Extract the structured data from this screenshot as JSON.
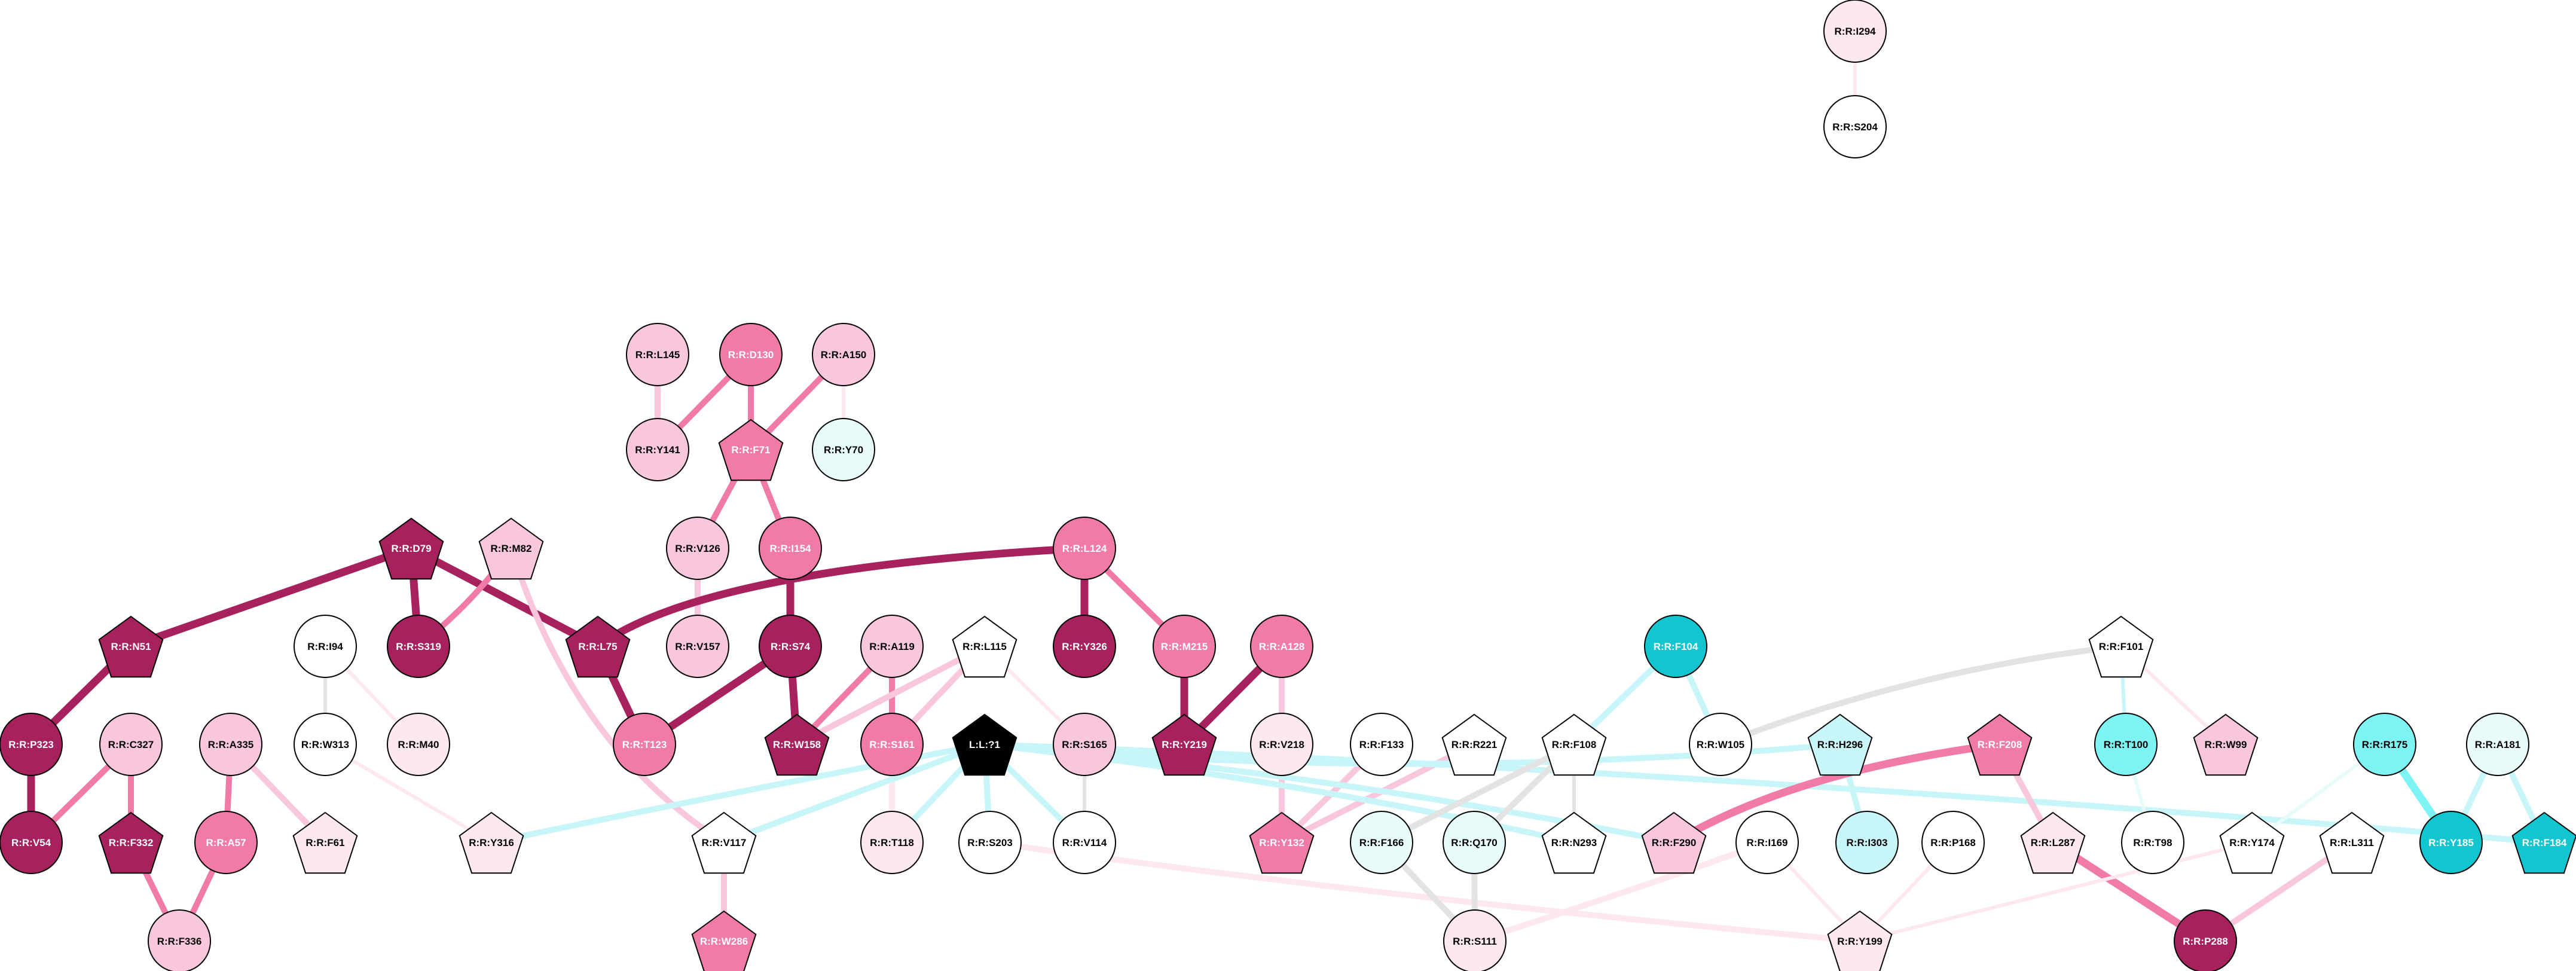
{
  "colors": {
    "background": "#ffffff",
    "node_stroke": "#000000",
    "ligand": "#000000",
    "deep_magenta": "#a6215e",
    "pink": "#f07aa8",
    "light_pink": "#f9c7dd",
    "pale_pink": "#fde8f0",
    "white": "#ffffff",
    "pale_cyan": "#e8fbfb",
    "light_cyan": "#c8f6f8",
    "cyan": "#7df3f3",
    "teal": "#12c6d0",
    "edge_gray": "#e3e3e3"
  },
  "nodes": [
    {
      "id": "R:R:I294",
      "shape": "circle",
      "fill": "pale_pink"
    },
    {
      "id": "R:R:S204",
      "shape": "circle",
      "fill": "white"
    },
    {
      "id": "R:R:L145",
      "shape": "circle",
      "fill": "light_pink"
    },
    {
      "id": "R:R:D130",
      "shape": "circle",
      "fill": "pink"
    },
    {
      "id": "R:R:A150",
      "shape": "circle",
      "fill": "light_pink"
    },
    {
      "id": "R:R:Y141",
      "shape": "circle",
      "fill": "light_pink"
    },
    {
      "id": "R:R:F71",
      "shape": "pentagon",
      "fill": "pink"
    },
    {
      "id": "R:R:Y70",
      "shape": "circle",
      "fill": "pale_cyan"
    },
    {
      "id": "R:R:D79",
      "shape": "pentagon",
      "fill": "deep_magenta"
    },
    {
      "id": "R:R:M82",
      "shape": "pentagon",
      "fill": "light_pink"
    },
    {
      "id": "R:R:V126",
      "shape": "circle",
      "fill": "light_pink"
    },
    {
      "id": "R:R:I154",
      "shape": "circle",
      "fill": "pink"
    },
    {
      "id": "R:R:L124",
      "shape": "circle",
      "fill": "pink"
    },
    {
      "id": "R:R:N51",
      "shape": "pentagon",
      "fill": "deep_magenta"
    },
    {
      "id": "R:R:I94",
      "shape": "circle",
      "fill": "white"
    },
    {
      "id": "R:R:S319",
      "shape": "circle",
      "fill": "deep_magenta"
    },
    {
      "id": "R:R:L75",
      "shape": "pentagon",
      "fill": "deep_magenta"
    },
    {
      "id": "R:R:V157",
      "shape": "circle",
      "fill": "light_pink"
    },
    {
      "id": "R:R:S74",
      "shape": "circle",
      "fill": "deep_magenta"
    },
    {
      "id": "R:R:A119",
      "shape": "circle",
      "fill": "light_pink"
    },
    {
      "id": "R:R:L115",
      "shape": "pentagon",
      "fill": "white"
    },
    {
      "id": "R:R:Y326",
      "shape": "circle",
      "fill": "deep_magenta"
    },
    {
      "id": "R:R:M215",
      "shape": "circle",
      "fill": "pink"
    },
    {
      "id": "R:R:A128",
      "shape": "circle",
      "fill": "pink"
    },
    {
      "id": "R:R:F104",
      "shape": "circle",
      "fill": "teal"
    },
    {
      "id": "R:R:F101",
      "shape": "pentagon",
      "fill": "white"
    },
    {
      "id": "R:R:P323",
      "shape": "circle",
      "fill": "deep_magenta"
    },
    {
      "id": "R:R:C327",
      "shape": "circle",
      "fill": "light_pink"
    },
    {
      "id": "R:R:A335",
      "shape": "circle",
      "fill": "light_pink"
    },
    {
      "id": "R:R:W313",
      "shape": "circle",
      "fill": "white"
    },
    {
      "id": "R:R:M40",
      "shape": "circle",
      "fill": "pale_pink"
    },
    {
      "id": "R:R:T123",
      "shape": "circle",
      "fill": "pink"
    },
    {
      "id": "R:R:W158",
      "shape": "pentagon",
      "fill": "deep_magenta"
    },
    {
      "id": "R:R:S161",
      "shape": "circle",
      "fill": "pink"
    },
    {
      "id": "L:L:?1",
      "shape": "pentagon",
      "fill": "ligand"
    },
    {
      "id": "R:R:S165",
      "shape": "circle",
      "fill": "light_pink"
    },
    {
      "id": "R:R:Y219",
      "shape": "pentagon",
      "fill": "deep_magenta"
    },
    {
      "id": "R:R:V218",
      "shape": "circle",
      "fill": "pale_pink"
    },
    {
      "id": "R:R:F133",
      "shape": "circle",
      "fill": "white"
    },
    {
      "id": "R:R:R221",
      "shape": "pentagon",
      "fill": "white"
    },
    {
      "id": "R:R:F108",
      "shape": "pentagon",
      "fill": "white"
    },
    {
      "id": "R:R:W105",
      "shape": "circle",
      "fill": "white"
    },
    {
      "id": "R:R:H296",
      "shape": "pentagon",
      "fill": "light_cyan"
    },
    {
      "id": "R:R:F208",
      "shape": "pentagon",
      "fill": "pink"
    },
    {
      "id": "R:R:T100",
      "shape": "circle",
      "fill": "cyan"
    },
    {
      "id": "R:R:W99",
      "shape": "pentagon",
      "fill": "light_pink"
    },
    {
      "id": "R:R:R175",
      "shape": "circle",
      "fill": "cyan"
    },
    {
      "id": "R:R:A181",
      "shape": "circle",
      "fill": "pale_cyan"
    },
    {
      "id": "R:R:V54",
      "shape": "circle",
      "fill": "deep_magenta"
    },
    {
      "id": "R:R:F332",
      "shape": "pentagon",
      "fill": "deep_magenta"
    },
    {
      "id": "R:R:A57",
      "shape": "circle",
      "fill": "pink"
    },
    {
      "id": "R:R:F61",
      "shape": "pentagon",
      "fill": "pale_pink"
    },
    {
      "id": "R:R:Y316",
      "shape": "pentagon",
      "fill": "pale_pink"
    },
    {
      "id": "R:R:V117",
      "shape": "pentagon",
      "fill": "white"
    },
    {
      "id": "R:R:T118",
      "shape": "circle",
      "fill": "pale_pink"
    },
    {
      "id": "R:R:S203",
      "shape": "circle",
      "fill": "white"
    },
    {
      "id": "R:R:V114",
      "shape": "circle",
      "fill": "white"
    },
    {
      "id": "R:R:Y132",
      "shape": "pentagon",
      "fill": "pink"
    },
    {
      "id": "R:R:F166",
      "shape": "circle",
      "fill": "pale_cyan"
    },
    {
      "id": "R:R:Q170",
      "shape": "circle",
      "fill": "pale_cyan"
    },
    {
      "id": "R:R:N293",
      "shape": "pentagon",
      "fill": "white"
    },
    {
      "id": "R:R:F290",
      "shape": "pentagon",
      "fill": "light_pink"
    },
    {
      "id": "R:R:I169",
      "shape": "circle",
      "fill": "white"
    },
    {
      "id": "R:R:I303",
      "shape": "circle",
      "fill": "light_cyan"
    },
    {
      "id": "R:R:P168",
      "shape": "circle",
      "fill": "white"
    },
    {
      "id": "R:R:L287",
      "shape": "pentagon",
      "fill": "pale_pink"
    },
    {
      "id": "R:R:T98",
      "shape": "circle",
      "fill": "white"
    },
    {
      "id": "R:R:Y174",
      "shape": "pentagon",
      "fill": "white"
    },
    {
      "id": "R:R:L311",
      "shape": "pentagon",
      "fill": "white"
    },
    {
      "id": "R:R:Y185",
      "shape": "circle",
      "fill": "teal"
    },
    {
      "id": "R:R:F184",
      "shape": "pentagon",
      "fill": "teal"
    },
    {
      "id": "R:R:F336",
      "shape": "circle",
      "fill": "light_pink"
    },
    {
      "id": "R:R:W286",
      "shape": "pentagon",
      "fill": "pink"
    },
    {
      "id": "R:R:S111",
      "shape": "circle",
      "fill": "pale_pink"
    },
    {
      "id": "R:R:Y199",
      "shape": "pentagon",
      "fill": "pale_pink"
    },
    {
      "id": "R:R:P288",
      "shape": "circle",
      "fill": "deep_magenta"
    }
  ],
  "edges": [
    {
      "source": "R:R:I294",
      "target": "R:R:S204",
      "color": "pale_pink",
      "weight": "thin"
    },
    {
      "source": "R:R:L145",
      "target": "R:R:Y141",
      "color": "light_pink",
      "weight": "medium"
    },
    {
      "source": "R:R:D130",
      "target": "R:R:Y141",
      "color": "pink",
      "weight": "medium"
    },
    {
      "source": "R:R:D130",
      "target": "R:R:F71",
      "color": "pink",
      "weight": "medium"
    },
    {
      "source": "R:R:A150",
      "target": "R:R:F71",
      "color": "pink",
      "weight": "medium"
    },
    {
      "source": "R:R:A150",
      "target": "R:R:Y70",
      "color": "pale_pink",
      "weight": "thin"
    },
    {
      "source": "R:R:F71",
      "target": "R:R:V126",
      "color": "pink",
      "weight": "medium"
    },
    {
      "source": "R:R:F71",
      "target": "R:R:I154",
      "color": "pink",
      "weight": "medium"
    },
    {
      "source": "R:R:V126",
      "target": "R:R:V157",
      "color": "light_pink",
      "weight": "medium"
    },
    {
      "source": "R:R:I154",
      "target": "R:R:S74",
      "color": "deep_magenta",
      "weight": "thick"
    },
    {
      "source": "R:R:D79",
      "target": "R:R:N51",
      "color": "deep_magenta",
      "weight": "thick"
    },
    {
      "source": "R:R:D79",
      "target": "R:R:S319",
      "color": "deep_magenta",
      "weight": "thick"
    },
    {
      "source": "R:R:D79",
      "target": "R:R:L75",
      "color": "deep_magenta",
      "weight": "thick"
    },
    {
      "source": "R:R:M82",
      "target": "R:R:S319",
      "color": "pink",
      "weight": "medium"
    },
    {
      "source": "R:R:M82",
      "target": "R:R:V117",
      "color": "light_pink",
      "weight": "medium"
    },
    {
      "source": "R:R:L124",
      "target": "R:R:L75",
      "color": "deep_magenta",
      "weight": "thick"
    },
    {
      "source": "R:R:L124",
      "target": "R:R:Y326",
      "color": "deep_magenta",
      "weight": "thick"
    },
    {
      "source": "R:R:L124",
      "target": "R:R:M215",
      "color": "pink",
      "weight": "medium"
    },
    {
      "source": "R:R:N51",
      "target": "R:R:P323",
      "color": "deep_magenta",
      "weight": "thick"
    },
    {
      "source": "R:R:L75",
      "target": "R:R:T123",
      "color": "deep_magenta",
      "weight": "thick"
    },
    {
      "source": "R:R:S74",
      "target": "R:R:T123",
      "color": "deep_magenta",
      "weight": "thick"
    },
    {
      "source": "R:R:S74",
      "target": "R:R:W158",
      "color": "deep_magenta",
      "weight": "thick"
    },
    {
      "source": "R:R:A119",
      "target": "R:R:W158",
      "color": "pink",
      "weight": "medium"
    },
    {
      "source": "R:R:A119",
      "target": "R:R:S161",
      "color": "pink",
      "weight": "medium"
    },
    {
      "source": "R:R:L115",
      "target": "R:R:W158",
      "color": "light_pink",
      "weight": "medium"
    },
    {
      "source": "R:R:L115",
      "target": "R:R:S161",
      "color": "light_pink",
      "weight": "medium"
    },
    {
      "source": "R:R:L115",
      "target": "R:R:S165",
      "color": "pale_pink",
      "weight": "thin"
    },
    {
      "source": "R:R:M215",
      "target": "R:R:Y219",
      "color": "deep_magenta",
      "weight": "thick"
    },
    {
      "source": "R:R:A128",
      "target": "R:R:Y219",
      "color": "deep_magenta",
      "weight": "thick"
    },
    {
      "source": "R:R:A128",
      "target": "R:R:V218",
      "color": "light_pink",
      "weight": "medium"
    },
    {
      "source": "R:R:I94",
      "target": "R:R:W313",
      "color": "edge_gray",
      "weight": "thin"
    },
    {
      "source": "R:R:I94",
      "target": "R:R:M40",
      "color": "pale_pink",
      "weight": "thin"
    },
    {
      "source": "R:R:W313",
      "target": "R:R:Y316",
      "color": "pale_pink",
      "weight": "thin"
    },
    {
      "source": "R:R:P323",
      "target": "R:R:V54",
      "color": "deep_magenta",
      "weight": "thick"
    },
    {
      "source": "R:R:C327",
      "target": "R:R:V54",
      "color": "pink",
      "weight": "medium"
    },
    {
      "source": "R:R:C327",
      "target": "R:R:F332",
      "color": "pink",
      "weight": "medium"
    },
    {
      "source": "R:R:A335",
      "target": "R:R:A57",
      "color": "pink",
      "weight": "medium"
    },
    {
      "source": "R:R:A335",
      "target": "R:R:F61",
      "color": "light_pink",
      "weight": "medium"
    },
    {
      "source": "R:R:F332",
      "target": "R:R:F336",
      "color": "pink",
      "weight": "medium"
    },
    {
      "source": "R:R:A57",
      "target": "R:R:F336",
      "color": "pink",
      "weight": "medium"
    },
    {
      "source": "R:R:S161",
      "target": "R:R:T118",
      "color": "pale_pink",
      "weight": "medium"
    },
    {
      "source": "R:R:S165",
      "target": "R:R:V114",
      "color": "edge_gray",
      "weight": "thin"
    },
    {
      "source": "R:R:V218",
      "target": "R:R:Y132",
      "color": "light_pink",
      "weight": "medium"
    },
    {
      "source": "R:R:F133",
      "target": "R:R:Y132",
      "color": "light_pink",
      "weight": "medium"
    },
    {
      "source": "R:R:R221",
      "target": "R:R:Y132",
      "color": "light_pink",
      "weight": "medium"
    },
    {
      "source": "L:L:?1",
      "target": "R:R:Y316",
      "color": "light_cyan",
      "weight": "medium"
    },
    {
      "source": "L:L:?1",
      "target": "R:R:V117",
      "color": "light_cyan",
      "weight": "medium"
    },
    {
      "source": "L:L:?1",
      "target": "R:R:S203",
      "color": "light_cyan",
      "weight": "medium"
    },
    {
      "source": "L:L:?1",
      "target": "R:R:V114",
      "color": "light_cyan",
      "weight": "medium"
    },
    {
      "source": "L:L:?1",
      "target": "R:R:F290",
      "color": "light_cyan",
      "weight": "medium"
    },
    {
      "source": "L:L:?1",
      "target": "R:R:N293",
      "color": "light_cyan",
      "weight": "medium"
    },
    {
      "source": "L:L:?1",
      "target": "R:R:F184",
      "color": "light_cyan",
      "weight": "medium"
    },
    {
      "source": "L:L:?1",
      "target": "R:R:T118",
      "color": "light_cyan",
      "weight": "medium"
    },
    {
      "source": "L:L:?1",
      "target": "R:R:H296",
      "color": "light_cyan",
      "weight": "medium"
    },
    {
      "source": "R:R:S203",
      "target": "R:R:Y199",
      "color": "pale_pink",
      "weight": "medium"
    },
    {
      "source": "R:R:F104",
      "target": "R:R:F108",
      "color": "light_cyan",
      "weight": "medium"
    },
    {
      "source": "R:R:F104",
      "target": "R:R:W105",
      "color": "light_cyan",
      "weight": "medium"
    },
    {
      "source": "R:R:F101",
      "target": "R:R:W105",
      "color": "edge_gray",
      "weight": "medium"
    },
    {
      "source": "R:R:F101",
      "target": "R:R:T100",
      "color": "light_cyan",
      "weight": "thin"
    },
    {
      "source": "R:R:F101",
      "target": "R:R:W99",
      "color": "pale_pink",
      "weight": "thin"
    },
    {
      "source": "R:R:F108",
      "target": "R:R:F166",
      "color": "edge_gray",
      "weight": "medium"
    },
    {
      "source": "R:R:F108",
      "target": "R:R:Q170",
      "color": "edge_gray",
      "weight": "medium"
    },
    {
      "source": "R:R:F108",
      "target": "R:R:N293",
      "color": "edge_gray",
      "weight": "thin"
    },
    {
      "source": "R:R:F166",
      "target": "R:R:S111",
      "color": "edge_gray",
      "weight": "medium"
    },
    {
      "source": "R:R:Q170",
      "target": "R:R:S111",
      "color": "edge_gray",
      "weight": "medium"
    },
    {
      "source": "R:R:I169",
      "target": "R:R:S111",
      "color": "pale_pink",
      "weight": "medium"
    },
    {
      "source": "R:R:I169",
      "target": "R:R:Y199",
      "color": "pale_pink",
      "weight": "thin"
    },
    {
      "source": "R:R:P168",
      "target": "R:R:Y199",
      "color": "pale_pink",
      "weight": "thin"
    },
    {
      "source": "R:R:H296",
      "target": "R:R:I303",
      "color": "light_cyan",
      "weight": "medium"
    },
    {
      "source": "R:R:F208",
      "target": "R:R:F290",
      "color": "pink",
      "weight": "thick"
    },
    {
      "source": "R:R:F208",
      "target": "R:R:L287",
      "color": "light_pink",
      "weight": "medium"
    },
    {
      "source": "R:R:L287",
      "target": "R:R:P288",
      "color": "pink",
      "weight": "thick"
    },
    {
      "source": "R:R:T100",
      "target": "R:R:T98",
      "color": "pale_cyan",
      "weight": "thin"
    },
    {
      "source": "R:R:R175",
      "target": "R:R:Y174",
      "color": "pale_cyan",
      "weight": "thin"
    },
    {
      "source": "R:R:R175",
      "target": "R:R:Y185",
      "color": "cyan",
      "weight": "thick"
    },
    {
      "source": "R:R:A181",
      "target": "R:R:Y185",
      "color": "light_cyan",
      "weight": "medium"
    },
    {
      "source": "R:R:A181",
      "target": "R:R:F184",
      "color": "light_cyan",
      "weight": "medium"
    },
    {
      "source": "R:R:Y174",
      "target": "R:R:Y199",
      "color": "pale_pink",
      "weight": "thin"
    },
    {
      "source": "R:R:L311",
      "target": "R:R:P288",
      "color": "light_pink",
      "weight": "medium"
    },
    {
      "source": "R:R:V117",
      "target": "R:R:W286",
      "color": "light_pink",
      "weight": "medium"
    }
  ]
}
